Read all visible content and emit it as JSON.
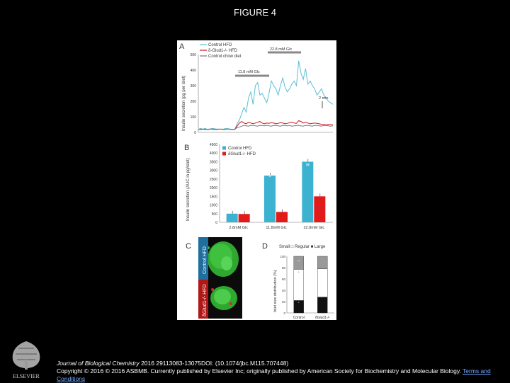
{
  "slide": {
    "title": "FIGURE 4"
  },
  "figure": {
    "panelA": {
      "label": "A",
      "ylabel": "Insulin secretion (pg per islet)",
      "yticks": [
        "500",
        "400",
        "300",
        "200",
        "100",
        "0"
      ],
      "legend": [
        "Control HFD",
        "δ-Glud1-/- HFD",
        "Control chow diet"
      ],
      "annotations": [
        "22.8 mM Glc",
        "11.8 mM Glc",
        "2 min"
      ]
    },
    "panelB": {
      "label": "B",
      "ylabel": "Insulin secretion (AUC in pg/islet)",
      "legend": [
        "Control HFD",
        "δGlud1-/- HFD"
      ],
      "markers": [
        "$",
        "$$",
        "**"
      ]
    },
    "panelC": {
      "label": "C",
      "images": [
        "Control HFD",
        "δGlud1-/- HFD"
      ]
    },
    "panelD": {
      "label": "D",
      "legend": "Small □ Regular ■ Large",
      "ylabel": "Islet size distribution (%)",
      "markers": [
        "**",
        "*",
        "*"
      ]
    }
  },
  "chart_data": [
    {
      "type": "line",
      "panel": "A",
      "ylim": [
        0,
        500
      ],
      "series": [
        {
          "name": "Control HFD",
          "color": "#5bbfd3",
          "values": [
            20,
            25,
            22,
            25,
            20,
            22,
            25,
            24,
            22,
            21,
            20,
            22,
            25,
            24,
            22,
            20,
            21,
            55,
            80,
            120,
            160,
            130,
            220,
            260,
            180,
            300,
            320,
            240,
            250,
            220,
            190,
            250,
            330,
            300,
            280,
            240,
            300,
            350,
            290,
            260,
            280,
            310,
            330,
            300,
            460,
            380,
            340,
            410,
            310,
            330,
            300,
            280,
            240,
            260,
            280,
            240,
            220,
            200,
            190,
            180
          ]
        },
        {
          "name": "δ-Glud1-/- HFD",
          "color": "#d0151a",
          "values": [
            20,
            18,
            20,
            22,
            18,
            20,
            22,
            20,
            18,
            20,
            22,
            18,
            20,
            22,
            18,
            20,
            18,
            40,
            60,
            70,
            60,
            55,
            65,
            60,
            55,
            60,
            65,
            70,
            60,
            55,
            60,
            58,
            62,
            60,
            55,
            58,
            62,
            60,
            55,
            58,
            62,
            66,
            60,
            58,
            75,
            70,
            60,
            65,
            60,
            55,
            58,
            60,
            58,
            55,
            52,
            50,
            48,
            52,
            50,
            48
          ]
        },
        {
          "name": "Control chow diet",
          "color": "#777777",
          "values": [
            20,
            22,
            20,
            18,
            20,
            22,
            20,
            18,
            20,
            22,
            20,
            18,
            20,
            22,
            20,
            18,
            20,
            30,
            35,
            40,
            45,
            42,
            40,
            45,
            44,
            42,
            40,
            45,
            44,
            42,
            45,
            42,
            40,
            45,
            44,
            42,
            40,
            45,
            44,
            42,
            45,
            40,
            42,
            44,
            45,
            42,
            40,
            45,
            44,
            42,
            40,
            45,
            44,
            42,
            40,
            45,
            44,
            42,
            40,
            42
          ]
        }
      ]
    },
    {
      "type": "bar",
      "panel": "B",
      "categories": [
        "2.8mM Glc",
        "11.8mM Glc",
        "22.8mM Glc"
      ],
      "ylim": [
        0,
        4500
      ],
      "yticks": [
        0,
        500,
        1000,
        1500,
        2000,
        2500,
        3000,
        3500,
        4000,
        4500
      ],
      "series": [
        {
          "name": "Control HFD",
          "color": "#3bb3d0",
          "values": [
            500,
            2700,
            3500
          ]
        },
        {
          "name": "δGlud1-/- HFD",
          "color": "#e11a1a",
          "values": [
            480,
            600,
            1500
          ]
        }
      ]
    },
    {
      "type": "bar",
      "panel": "D",
      "categories": [
        "Control",
        "δGlud1-/-"
      ],
      "ylim": [
        0,
        100
      ],
      "yticks": [
        0,
        20,
        40,
        60,
        80,
        100
      ],
      "series": [
        {
          "name": "Large",
          "color": "#111111",
          "values": [
            22,
            28
          ]
        },
        {
          "name": "Regular",
          "color": "#ffffff",
          "values": [
            55,
            50
          ]
        },
        {
          "name": "Small",
          "color": "#999999",
          "values": [
            23,
            22
          ]
        }
      ]
    }
  ],
  "footer": {
    "journal": "Journal of Biological Chemistry",
    "citation": " 2016 29113083-13075DOI: (10.1074/jbc.M115.707448)",
    "copyright": "Copyright © 2016 © 2016 ASBMB. Currently published by Elsevier Inc; originally published by American Society for Biochemistry and Molecular Biology. ",
    "terms": "Terms and Conditions"
  },
  "logo": {
    "text": "ELSEVIER"
  }
}
